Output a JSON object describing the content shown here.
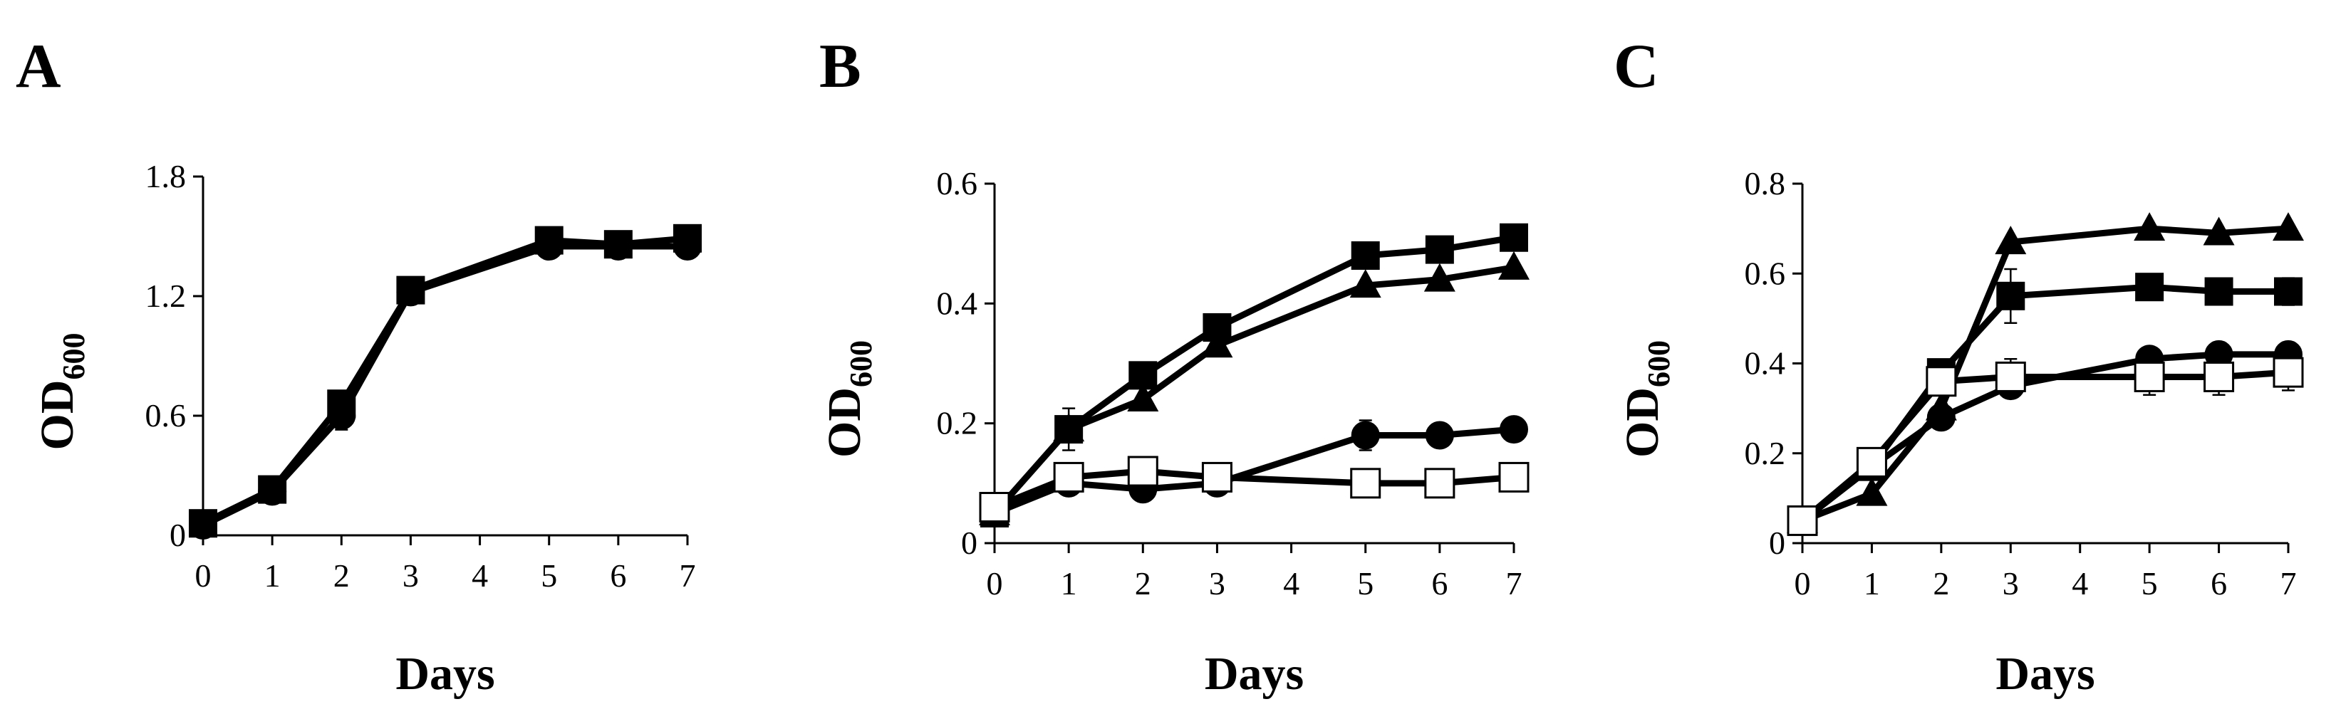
{
  "chart_data": [
    {
      "panel": "A",
      "type": "line",
      "xlabel": "Days",
      "ylabel": "OD",
      "ylabel_sub": "600",
      "x": [
        0,
        1,
        2,
        3,
        5,
        6,
        7
      ],
      "xticks": [
        "0",
        "1",
        "2",
        "3",
        "4",
        "5",
        "6",
        "7"
      ],
      "yticks": [
        "0",
        "0.6",
        "1.2",
        "1.8"
      ],
      "ylim": [
        0,
        1.8
      ],
      "xlim": [
        0,
        7
      ],
      "series": [
        {
          "name": "circle",
          "marker": "circle-filled",
          "values": [
            0.05,
            0.22,
            0.6,
            1.22,
            1.45,
            1.45,
            1.45
          ],
          "errors": [
            0,
            0,
            0.07,
            0,
            0,
            0,
            0
          ]
        },
        {
          "name": "square",
          "marker": "square-filled",
          "values": [
            0.06,
            0.23,
            0.66,
            1.23,
            1.48,
            1.46,
            1.49
          ],
          "errors": [
            0,
            0,
            0,
            0,
            0,
            0,
            0
          ]
        }
      ]
    },
    {
      "panel": "B",
      "type": "line",
      "xlabel": "Days",
      "ylabel": "OD",
      "ylabel_sub": "600",
      "x": [
        0,
        1,
        2,
        3,
        5,
        6,
        7
      ],
      "xticks": [
        "0",
        "1",
        "2",
        "3",
        "4",
        "5",
        "6",
        "7"
      ],
      "yticks": [
        "0",
        "0.2",
        "0.4",
        "0.6"
      ],
      "ylim": [
        0,
        0.6
      ],
      "xlim": [
        0,
        7
      ],
      "series": [
        {
          "name": "square",
          "marker": "square-filled",
          "values": [
            0.05,
            0.19,
            0.28,
            0.36,
            0.48,
            0.49,
            0.51
          ],
          "errors": [
            0,
            0.035,
            0,
            0,
            0,
            0,
            0
          ]
        },
        {
          "name": "triangle",
          "marker": "triangle-filled",
          "values": [
            0.05,
            0.19,
            0.24,
            0.33,
            0.43,
            0.44,
            0.46
          ],
          "errors": [
            0,
            0,
            0,
            0,
            0,
            0,
            0
          ]
        },
        {
          "name": "circle",
          "marker": "circle-filled",
          "values": [
            0.05,
            0.1,
            0.09,
            0.1,
            0.18,
            0.18,
            0.19
          ],
          "errors": [
            0,
            0,
            0,
            0,
            0.025,
            0,
            0
          ]
        },
        {
          "name": "open-square",
          "marker": "square-open",
          "values": [
            0.06,
            0.11,
            0.12,
            0.11,
            0.1,
            0.1,
            0.11
          ],
          "errors": [
            0,
            0,
            0,
            0,
            0,
            0,
            0
          ]
        }
      ]
    },
    {
      "panel": "C",
      "type": "line",
      "xlabel": "Days",
      "ylabel": "OD",
      "ylabel_sub": "600",
      "x": [
        0,
        1,
        2,
        3,
        5,
        6,
        7
      ],
      "xticks": [
        "0",
        "1",
        "2",
        "3",
        "4",
        "5",
        "6",
        "7"
      ],
      "yticks": [
        "0",
        "0.2",
        "0.4",
        "0.6",
        "0.8"
      ],
      "ylim": [
        0,
        0.8
      ],
      "xlim": [
        0,
        7
      ],
      "series": [
        {
          "name": "triangle",
          "marker": "triangle-filled",
          "values": [
            0.05,
            0.11,
            0.3,
            0.67,
            0.7,
            0.69,
            0.7
          ],
          "errors": [
            0,
            0,
            0,
            0,
            0,
            0,
            0
          ]
        },
        {
          "name": "square",
          "marker": "square-filled",
          "values": [
            0.05,
            0.17,
            0.38,
            0.55,
            0.57,
            0.56,
            0.56
          ],
          "errors": [
            0,
            0,
            0,
            0.06,
            0,
            0.02,
            0.03
          ]
        },
        {
          "name": "circle",
          "marker": "circle-filled",
          "values": [
            0.05,
            0.17,
            0.28,
            0.35,
            0.41,
            0.42,
            0.42
          ],
          "errors": [
            0,
            0,
            0,
            0,
            0,
            0,
            0
          ]
        },
        {
          "name": "open-square",
          "marker": "square-open",
          "values": [
            0.05,
            0.18,
            0.36,
            0.37,
            0.37,
            0.37,
            0.38
          ],
          "errors": [
            0,
            0,
            0,
            0.04,
            0.04,
            0.04,
            0.04
          ]
        }
      ]
    }
  ]
}
